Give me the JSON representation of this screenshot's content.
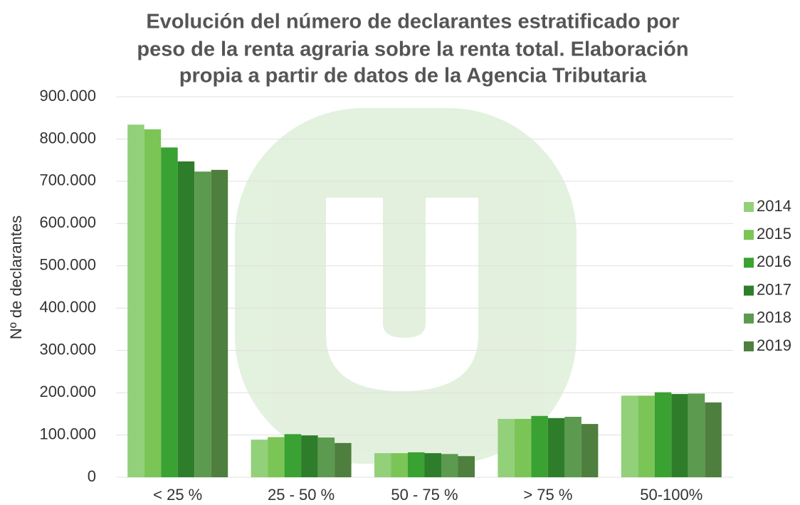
{
  "chart_data": {
    "type": "bar",
    "title": [
      "Evolución del número de declarantes estratificado por",
      "peso de la renta agraria sobre la renta total. Elaboración",
      "propia a partir de datos de la Agencia Tributaria"
    ],
    "y_label": "Nº de declarantes",
    "categories": [
      "< 25 %",
      "25 - 50 %",
      "50 - 75 %",
      "> 75 %",
      "50-100%"
    ],
    "series": [
      {
        "name": "2014",
        "color": "#92d07a",
        "values": [
          834000,
          89000,
          57000,
          138000,
          193000
        ]
      },
      {
        "name": "2015",
        "color": "#7ac556",
        "values": [
          823000,
          95000,
          57000,
          138000,
          193000
        ]
      },
      {
        "name": "2016",
        "color": "#3aa133",
        "values": [
          780000,
          102000,
          59000,
          145000,
          201000
        ]
      },
      {
        "name": "2017",
        "color": "#2e7d2a",
        "values": [
          747000,
          99000,
          57000,
          140000,
          197000
        ]
      },
      {
        "name": "2018",
        "color": "#5c9a4f",
        "values": [
          723000,
          94000,
          55000,
          143000,
          198000
        ]
      },
      {
        "name": "2019",
        "color": "#4e7f3e",
        "values": [
          727000,
          81000,
          50000,
          126000,
          177000
        ]
      }
    ],
    "ylim": [
      0,
      900000
    ],
    "yticks": [
      0,
      {
        "value": 100000,
        "label": "100.000"
      },
      {
        "value": 200000,
        "label": "200.000"
      },
      {
        "value": 300000,
        "label": "300.000"
      },
      {
        "value": 400000,
        "label": "400.000"
      },
      {
        "value": 500000,
        "label": "500.000"
      },
      {
        "value": 600000,
        "label": "600.000"
      },
      {
        "value": 700000,
        "label": "700.000"
      },
      {
        "value": 800000,
        "label": "800.000"
      },
      {
        "value": 900000,
        "label": "900.000"
      }
    ],
    "grid": true,
    "legend": "right"
  }
}
